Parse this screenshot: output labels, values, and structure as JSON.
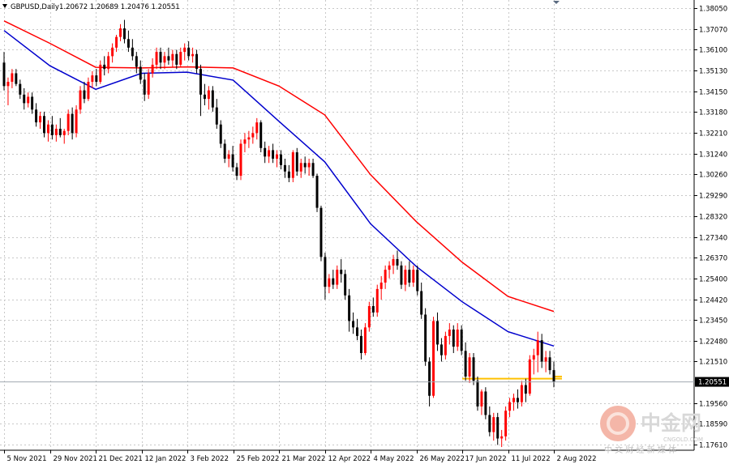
{
  "window": {
    "title_symbol": "GBPUSD,Daily",
    "title_values": "1.20672 1.20689 1.20476 1.20551"
  },
  "watermark": {
    "brand_cn": "中金网",
    "domain": "CNGOLD.COM",
    "tagline_cn": "中 文 财 经 新 媒 体"
  },
  "chart_data": {
    "type": "candlestick",
    "title": "GBPUSD,Daily",
    "ohlc": [
      1.20672,
      1.20689,
      1.20476,
      1.20551
    ],
    "last_price_label": "1.20551",
    "last_price": 1.20551,
    "ylim": [
      1.1735,
      1.3843
    ],
    "y_ticks": [
      "1.38050",
      "1.37070",
      "1.36100",
      "1.35130",
      "1.34150",
      "1.33180",
      "1.32210",
      "1.31240",
      "1.30260",
      "1.29290",
      "1.28320",
      "1.27340",
      "1.26370",
      "1.25400",
      "1.24420",
      "1.23450",
      "1.22480",
      "1.21510",
      "1.19560",
      "1.18590",
      "1.17610"
    ],
    "x_ticks": [
      "5 Nov 2021",
      "29 Nov 2021",
      "21 Dec 2021",
      "12 Jan 2022",
      "3 Feb 2022",
      "25 Feb 2022",
      "21 Mar 2022",
      "12 Apr 2022",
      "4 May 2022",
      "26 May 2022",
      "17 Jun 2022",
      "11 Jul 2022",
      "2 Aug 2022"
    ],
    "grid": true,
    "colors": {
      "bull": "#ff0000",
      "bear": "#000000",
      "ma_fast": "#0000cd",
      "ma_slow": "#ff0000",
      "level": "#ffc000",
      "grid": "#c8c8c8"
    },
    "series": [
      {
        "kind": "ma",
        "color": "#0000cd",
        "points": [
          {
            "x": "5 Nov 2021",
            "y": 1.37
          },
          {
            "x": "29 Nov 2021",
            "y": 1.3535
          },
          {
            "x": "21 Dec 2021",
            "y": 1.3425
          },
          {
            "x": "12 Jan 2022",
            "y": 1.35
          },
          {
            "x": "3 Feb 2022",
            "y": 1.3505
          },
          {
            "x": "25 Feb 2022",
            "y": 1.3468
          },
          {
            "x": "21 Mar 2022",
            "y": 1.3275
          },
          {
            "x": "12 Apr 2022",
            "y": 1.3085
          },
          {
            "x": "4 May 2022",
            "y": 1.2795
          },
          {
            "x": "26 May 2022",
            "y": 1.2595
          },
          {
            "x": "17 Jun 2022",
            "y": 1.243
          },
          {
            "x": "11 Jul 2022",
            "y": 1.229
          },
          {
            "x": "2 Aug 2022",
            "y": 1.2223
          }
        ]
      },
      {
        "kind": "ma",
        "color": "#ff0000",
        "points": [
          {
            "x": "5 Nov 2021",
            "y": 1.3745
          },
          {
            "x": "29 Nov 2021",
            "y": 1.364
          },
          {
            "x": "21 Dec 2021",
            "y": 1.3528
          },
          {
            "x": "12 Jan 2022",
            "y": 1.3525
          },
          {
            "x": "3 Feb 2022",
            "y": 1.353
          },
          {
            "x": "25 Feb 2022",
            "y": 1.3525
          },
          {
            "x": "21 Mar 2022",
            "y": 1.344
          },
          {
            "x": "12 Apr 2022",
            "y": 1.3305
          },
          {
            "x": "4 May 2022",
            "y": 1.3025
          },
          {
            "x": "26 May 2022",
            "y": 1.2805
          },
          {
            "x": "17 Jun 2022",
            "y": 1.2615
          },
          {
            "x": "11 Jul 2022",
            "y": 1.2455
          },
          {
            "x": "2 Aug 2022",
            "y": 1.2385
          }
        ]
      }
    ],
    "levels": [
      {
        "y": 1.207,
        "from": "17 Jun 2022",
        "to": "2 Aug 2022",
        "color": "#ffc000"
      },
      {
        "y": 1.208,
        "from": "2 Aug 2022",
        "to": "2 Aug 2022",
        "color": "#ffc000"
      }
    ],
    "candles": [
      {
        "o": 1.355,
        "h": 1.36,
        "l": 1.342,
        "c": 1.344
      },
      {
        "o": 1.344,
        "h": 1.348,
        "l": 1.335,
        "c": 1.346
      },
      {
        "o": 1.346,
        "h": 1.352,
        "l": 1.343,
        "c": 1.35
      },
      {
        "o": 1.35,
        "h": 1.352,
        "l": 1.344,
        "c": 1.345
      },
      {
        "o": 1.345,
        "h": 1.347,
        "l": 1.338,
        "c": 1.34
      },
      {
        "o": 1.34,
        "h": 1.343,
        "l": 1.333,
        "c": 1.336
      },
      {
        "o": 1.336,
        "h": 1.341,
        "l": 1.334,
        "c": 1.339
      },
      {
        "o": 1.339,
        "h": 1.341,
        "l": 1.331,
        "c": 1.333
      },
      {
        "o": 1.333,
        "h": 1.336,
        "l": 1.325,
        "c": 1.327
      },
      {
        "o": 1.327,
        "h": 1.332,
        "l": 1.324,
        "c": 1.33
      },
      {
        "o": 1.33,
        "h": 1.332,
        "l": 1.32,
        "c": 1.322
      },
      {
        "o": 1.322,
        "h": 1.328,
        "l": 1.318,
        "c": 1.326
      },
      {
        "o": 1.326,
        "h": 1.33,
        "l": 1.319,
        "c": 1.321
      },
      {
        "o": 1.321,
        "h": 1.326,
        "l": 1.318,
        "c": 1.324
      },
      {
        "o": 1.324,
        "h": 1.329,
        "l": 1.32,
        "c": 1.321
      },
      {
        "o": 1.321,
        "h": 1.324,
        "l": 1.317,
        "c": 1.323
      },
      {
        "o": 1.323,
        "h": 1.333,
        "l": 1.321,
        "c": 1.331
      },
      {
        "o": 1.331,
        "h": 1.334,
        "l": 1.319,
        "c": 1.322
      },
      {
        "o": 1.322,
        "h": 1.335,
        "l": 1.32,
        "c": 1.333
      },
      {
        "o": 1.333,
        "h": 1.344,
        "l": 1.331,
        "c": 1.342
      },
      {
        "o": 1.342,
        "h": 1.346,
        "l": 1.336,
        "c": 1.338
      },
      {
        "o": 1.338,
        "h": 1.348,
        "l": 1.337,
        "c": 1.346
      },
      {
        "o": 1.346,
        "h": 1.351,
        "l": 1.343,
        "c": 1.349
      },
      {
        "o": 1.349,
        "h": 1.352,
        "l": 1.344,
        "c": 1.346
      },
      {
        "o": 1.346,
        "h": 1.356,
        "l": 1.345,
        "c": 1.354
      },
      {
        "o": 1.354,
        "h": 1.358,
        "l": 1.349,
        "c": 1.352
      },
      {
        "o": 1.352,
        "h": 1.36,
        "l": 1.35,
        "c": 1.358
      },
      {
        "o": 1.358,
        "h": 1.364,
        "l": 1.355,
        "c": 1.362
      },
      {
        "o": 1.362,
        "h": 1.368,
        "l": 1.36,
        "c": 1.367
      },
      {
        "o": 1.367,
        "h": 1.373,
        "l": 1.365,
        "c": 1.371
      },
      {
        "o": 1.371,
        "h": 1.375,
        "l": 1.364,
        "c": 1.366
      },
      {
        "o": 1.366,
        "h": 1.37,
        "l": 1.36,
        "c": 1.362
      },
      {
        "o": 1.362,
        "h": 1.366,
        "l": 1.356,
        "c": 1.358
      },
      {
        "o": 1.358,
        "h": 1.36,
        "l": 1.35,
        "c": 1.353
      },
      {
        "o": 1.353,
        "h": 1.356,
        "l": 1.345,
        "c": 1.347
      },
      {
        "o": 1.347,
        "h": 1.35,
        "l": 1.337,
        "c": 1.34
      },
      {
        "o": 1.34,
        "h": 1.352,
        "l": 1.338,
        "c": 1.35
      },
      {
        "o": 1.35,
        "h": 1.357,
        "l": 1.348,
        "c": 1.354
      },
      {
        "o": 1.354,
        "h": 1.362,
        "l": 1.352,
        "c": 1.36
      },
      {
        "o": 1.36,
        "h": 1.362,
        "l": 1.352,
        "c": 1.355
      },
      {
        "o": 1.355,
        "h": 1.36,
        "l": 1.352,
        "c": 1.358
      },
      {
        "o": 1.358,
        "h": 1.362,
        "l": 1.354,
        "c": 1.356
      },
      {
        "o": 1.356,
        "h": 1.361,
        "l": 1.353,
        "c": 1.359
      },
      {
        "o": 1.359,
        "h": 1.361,
        "l": 1.352,
        "c": 1.354
      },
      {
        "o": 1.354,
        "h": 1.362,
        "l": 1.353,
        "c": 1.36
      },
      {
        "o": 1.36,
        "h": 1.364,
        "l": 1.356,
        "c": 1.362
      },
      {
        "o": 1.362,
        "h": 1.365,
        "l": 1.356,
        "c": 1.358
      },
      {
        "o": 1.358,
        "h": 1.362,
        "l": 1.355,
        "c": 1.359
      },
      {
        "o": 1.359,
        "h": 1.361,
        "l": 1.35,
        "c": 1.352
      },
      {
        "o": 1.352,
        "h": 1.354,
        "l": 1.33,
        "c": 1.34
      },
      {
        "o": 1.34,
        "h": 1.345,
        "l": 1.335,
        "c": 1.338
      },
      {
        "o": 1.338,
        "h": 1.344,
        "l": 1.333,
        "c": 1.342
      },
      {
        "o": 1.342,
        "h": 1.344,
        "l": 1.332,
        "c": 1.334
      },
      {
        "o": 1.334,
        "h": 1.338,
        "l": 1.324,
        "c": 1.326
      },
      {
        "o": 1.326,
        "h": 1.328,
        "l": 1.315,
        "c": 1.317
      },
      {
        "o": 1.317,
        "h": 1.319,
        "l": 1.308,
        "c": 1.31
      },
      {
        "o": 1.31,
        "h": 1.314,
        "l": 1.306,
        "c": 1.312
      },
      {
        "o": 1.312,
        "h": 1.316,
        "l": 1.304,
        "c": 1.306
      },
      {
        "o": 1.306,
        "h": 1.308,
        "l": 1.3,
        "c": 1.302
      },
      {
        "o": 1.302,
        "h": 1.319,
        "l": 1.3,
        "c": 1.317
      },
      {
        "o": 1.317,
        "h": 1.322,
        "l": 1.313,
        "c": 1.319
      },
      {
        "o": 1.319,
        "h": 1.323,
        "l": 1.315,
        "c": 1.32
      },
      {
        "o": 1.32,
        "h": 1.325,
        "l": 1.317,
        "c": 1.322
      },
      {
        "o": 1.322,
        "h": 1.329,
        "l": 1.319,
        "c": 1.327
      },
      {
        "o": 1.327,
        "h": 1.328,
        "l": 1.313,
        "c": 1.315
      },
      {
        "o": 1.315,
        "h": 1.318,
        "l": 1.308,
        "c": 1.311
      },
      {
        "o": 1.311,
        "h": 1.316,
        "l": 1.308,
        "c": 1.314
      },
      {
        "o": 1.314,
        "h": 1.317,
        "l": 1.308,
        "c": 1.31
      },
      {
        "o": 1.31,
        "h": 1.314,
        "l": 1.306,
        "c": 1.312
      },
      {
        "o": 1.312,
        "h": 1.314,
        "l": 1.305,
        "c": 1.307
      },
      {
        "o": 1.307,
        "h": 1.31,
        "l": 1.301,
        "c": 1.304
      },
      {
        "o": 1.304,
        "h": 1.307,
        "l": 1.299,
        "c": 1.301
      },
      {
        "o": 1.301,
        "h": 1.314,
        "l": 1.299,
        "c": 1.313
      },
      {
        "o": 1.313,
        "h": 1.315,
        "l": 1.302,
        "c": 1.304
      },
      {
        "o": 1.304,
        "h": 1.31,
        "l": 1.301,
        "c": 1.308
      },
      {
        "o": 1.308,
        "h": 1.311,
        "l": 1.303,
        "c": 1.306
      },
      {
        "o": 1.306,
        "h": 1.31,
        "l": 1.302,
        "c": 1.308
      },
      {
        "o": 1.308,
        "h": 1.31,
        "l": 1.301,
        "c": 1.302
      },
      {
        "o": 1.302,
        "h": 1.303,
        "l": 1.285,
        "c": 1.287
      },
      {
        "o": 1.287,
        "h": 1.288,
        "l": 1.262,
        "c": 1.264
      },
      {
        "o": 1.264,
        "h": 1.266,
        "l": 1.244,
        "c": 1.25
      },
      {
        "o": 1.25,
        "h": 1.256,
        "l": 1.247,
        "c": 1.254
      },
      {
        "o": 1.254,
        "h": 1.258,
        "l": 1.249,
        "c": 1.251
      },
      {
        "o": 1.251,
        "h": 1.26,
        "l": 1.249,
        "c": 1.258
      },
      {
        "o": 1.258,
        "h": 1.263,
        "l": 1.252,
        "c": 1.256
      },
      {
        "o": 1.256,
        "h": 1.258,
        "l": 1.244,
        "c": 1.246
      },
      {
        "o": 1.246,
        "h": 1.249,
        "l": 1.229,
        "c": 1.234
      },
      {
        "o": 1.234,
        "h": 1.238,
        "l": 1.228,
        "c": 1.231
      },
      {
        "o": 1.231,
        "h": 1.235,
        "l": 1.225,
        "c": 1.227
      },
      {
        "o": 1.227,
        "h": 1.23,
        "l": 1.216,
        "c": 1.219
      },
      {
        "o": 1.219,
        "h": 1.233,
        "l": 1.218,
        "c": 1.231
      },
      {
        "o": 1.231,
        "h": 1.243,
        "l": 1.229,
        "c": 1.241
      },
      {
        "o": 1.241,
        "h": 1.245,
        "l": 1.236,
        "c": 1.238
      },
      {
        "o": 1.238,
        "h": 1.251,
        "l": 1.236,
        "c": 1.249
      },
      {
        "o": 1.249,
        "h": 1.255,
        "l": 1.244,
        "c": 1.252
      },
      {
        "o": 1.252,
        "h": 1.26,
        "l": 1.249,
        "c": 1.258
      },
      {
        "o": 1.258,
        "h": 1.262,
        "l": 1.254,
        "c": 1.26
      },
      {
        "o": 1.26,
        "h": 1.265,
        "l": 1.256,
        "c": 1.263
      },
      {
        "o": 1.263,
        "h": 1.267,
        "l": 1.258,
        "c": 1.26
      },
      {
        "o": 1.26,
        "h": 1.262,
        "l": 1.249,
        "c": 1.251
      },
      {
        "o": 1.251,
        "h": 1.26,
        "l": 1.248,
        "c": 1.258
      },
      {
        "o": 1.258,
        "h": 1.262,
        "l": 1.25,
        "c": 1.252
      },
      {
        "o": 1.252,
        "h": 1.26,
        "l": 1.25,
        "c": 1.258
      },
      {
        "o": 1.258,
        "h": 1.26,
        "l": 1.246,
        "c": 1.248
      },
      {
        "o": 1.248,
        "h": 1.252,
        "l": 1.235,
        "c": 1.237
      },
      {
        "o": 1.237,
        "h": 1.24,
        "l": 1.213,
        "c": 1.215
      },
      {
        "o": 1.215,
        "h": 1.217,
        "l": 1.194,
        "c": 1.199
      },
      {
        "o": 1.199,
        "h": 1.236,
        "l": 1.198,
        "c": 1.234
      },
      {
        "o": 1.234,
        "h": 1.238,
        "l": 1.22,
        "c": 1.223
      },
      {
        "o": 1.223,
        "h": 1.226,
        "l": 1.215,
        "c": 1.218
      },
      {
        "o": 1.218,
        "h": 1.229,
        "l": 1.216,
        "c": 1.227
      },
      {
        "o": 1.227,
        "h": 1.233,
        "l": 1.223,
        "c": 1.23
      },
      {
        "o": 1.23,
        "h": 1.232,
        "l": 1.219,
        "c": 1.222
      },
      {
        "o": 1.222,
        "h": 1.233,
        "l": 1.22,
        "c": 1.23
      },
      {
        "o": 1.23,
        "h": 1.232,
        "l": 1.218,
        "c": 1.22
      },
      {
        "o": 1.22,
        "h": 1.224,
        "l": 1.206,
        "c": 1.208
      },
      {
        "o": 1.208,
        "h": 1.219,
        "l": 1.205,
        "c": 1.217
      },
      {
        "o": 1.217,
        "h": 1.219,
        "l": 1.204,
        "c": 1.206
      },
      {
        "o": 1.206,
        "h": 1.208,
        "l": 1.192,
        "c": 1.194
      },
      {
        "o": 1.194,
        "h": 1.202,
        "l": 1.19,
        "c": 1.201
      },
      {
        "o": 1.201,
        "h": 1.203,
        "l": 1.188,
        "c": 1.19
      },
      {
        "o": 1.19,
        "h": 1.194,
        "l": 1.18,
        "c": 1.182
      },
      {
        "o": 1.182,
        "h": 1.191,
        "l": 1.178,
        "c": 1.189
      },
      {
        "o": 1.189,
        "h": 1.191,
        "l": 1.176,
        "c": 1.179
      },
      {
        "o": 1.179,
        "h": 1.183,
        "l": 1.175,
        "c": 1.18
      },
      {
        "o": 1.18,
        "h": 1.194,
        "l": 1.178,
        "c": 1.192
      },
      {
        "o": 1.192,
        "h": 1.198,
        "l": 1.189,
        "c": 1.196
      },
      {
        "o": 1.196,
        "h": 1.2,
        "l": 1.192,
        "c": 1.198
      },
      {
        "o": 1.198,
        "h": 1.202,
        "l": 1.193,
        "c": 1.196
      },
      {
        "o": 1.196,
        "h": 1.206,
        "l": 1.194,
        "c": 1.204
      },
      {
        "o": 1.204,
        "h": 1.207,
        "l": 1.196,
        "c": 1.2
      },
      {
        "o": 1.2,
        "h": 1.218,
        "l": 1.199,
        "c": 1.216
      },
      {
        "o": 1.216,
        "h": 1.221,
        "l": 1.209,
        "c": 1.218
      },
      {
        "o": 1.218,
        "h": 1.229,
        "l": 1.21,
        "c": 1.225
      },
      {
        "o": 1.225,
        "h": 1.228,
        "l": 1.212,
        "c": 1.215
      },
      {
        "o": 1.215,
        "h": 1.22,
        "l": 1.21,
        "c": 1.217
      },
      {
        "o": 1.217,
        "h": 1.22,
        "l": 1.209,
        "c": 1.211
      },
      {
        "o": 1.211,
        "h": 1.215,
        "l": 1.203,
        "c": 1.2055
      }
    ]
  }
}
